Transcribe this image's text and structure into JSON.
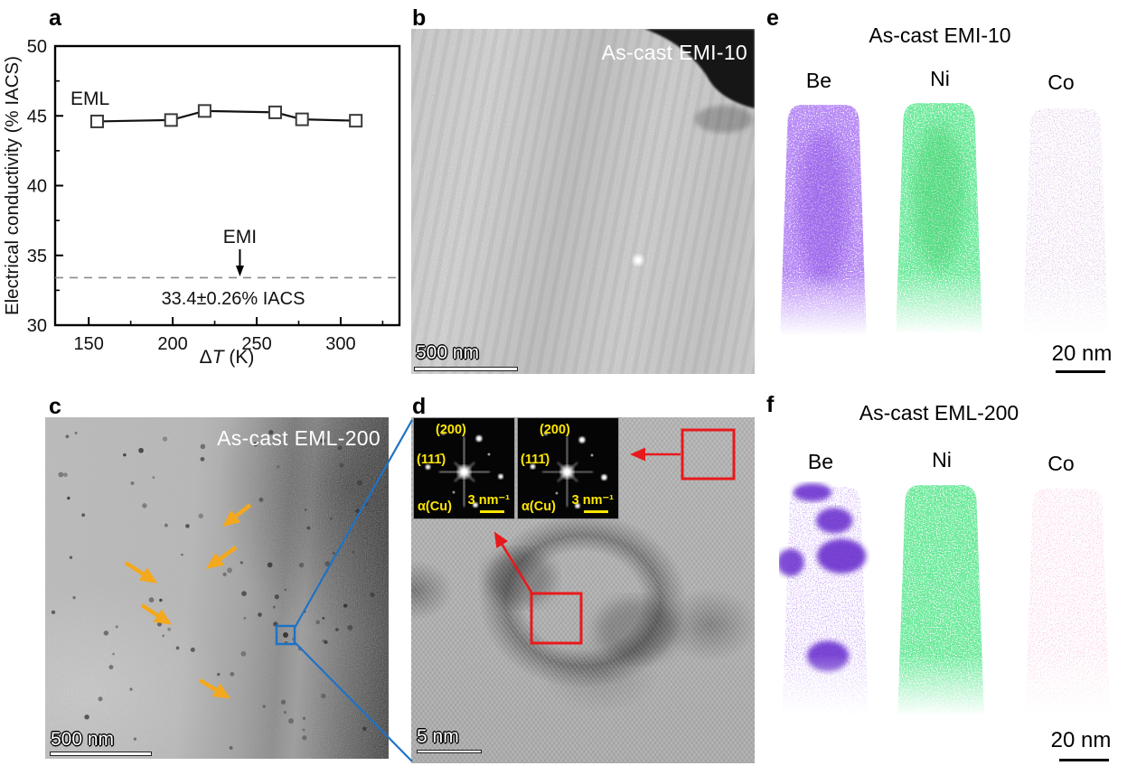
{
  "panel_a": {
    "label": "a"
  },
  "chart_data": {
    "type": "line",
    "xlabel": "ΔT (K)",
    "xlabel_parts": {
      "pre": "Δ",
      "italic": "T",
      "post": " (K)"
    },
    "ylabel": "Electrical conductivity (% IACS)",
    "xlim": [
      130,
      335
    ],
    "ylim": [
      30,
      50
    ],
    "xticks": [
      150,
      200,
      250,
      300
    ],
    "xticks_minor": [
      175,
      225,
      275,
      325
    ],
    "yticks": [
      30,
      35,
      40,
      45,
      50
    ],
    "yticks_minor": [
      32.5,
      37.5,
      42.5,
      47.5
    ],
    "grid": false,
    "series": [
      {
        "name": "EML",
        "marker": "open-square",
        "x": [
          155,
          199,
          219,
          261,
          277,
          309
        ],
        "y": [
          44.6,
          44.7,
          45.35,
          45.25,
          44.75,
          44.65
        ]
      }
    ],
    "reference_line": {
      "label": "EMI",
      "y": 33.4,
      "style": "dashed",
      "value_text": "33.4±0.26% IACS",
      "arrow_x": 240
    }
  },
  "panel_b": {
    "label": "b",
    "annotation": "As-cast EMI-10",
    "scale_bar": "500 nm"
  },
  "panel_c": {
    "label": "c",
    "annotation": "As-cast EML-200",
    "scale_bar": "500 nm"
  },
  "panel_d": {
    "label": "d",
    "scale_bar": "5 nm",
    "fft_insets": [
      {
        "top_plane": "(200)",
        "left_plane": "(111̄)",
        "phase": "α(Cu)",
        "scale": "3 nm⁻¹"
      },
      {
        "top_plane": "(200)",
        "left_plane": "(111̄)",
        "phase": "α(Cu)",
        "scale": "3 nm⁻¹"
      }
    ]
  },
  "panel_e": {
    "label": "e",
    "title": "As-cast EMI-10",
    "elements": [
      "Be",
      "Ni",
      "Co"
    ],
    "scale_bar": "20 nm"
  },
  "panel_f": {
    "label": "f",
    "title": "As-cast EML-200",
    "elements": [
      "Be",
      "Ni",
      "Co"
    ],
    "scale_bar": "20 nm"
  },
  "colors": {
    "arrow_orange": "#F4A81D",
    "zoom_box_blue": "#1E72C5",
    "highlight_red": "#E8191C",
    "fft_label_yellow": "#FFE604",
    "be_purple_dense": "#7840E8",
    "ni_green": "#2BCE55",
    "co_mauve": "#BC8CCB",
    "be_purple_sparse": "#A06BEA",
    "be_cluster_purple": "#5B1EC9",
    "co_pink": "#EE93C0"
  }
}
